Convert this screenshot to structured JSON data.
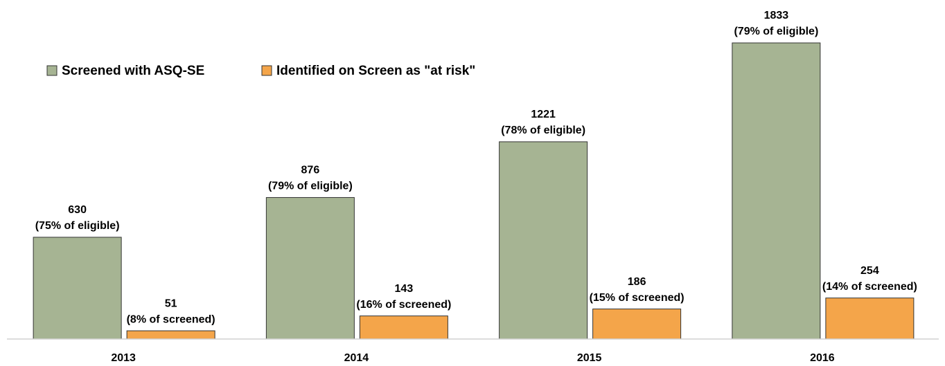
{
  "chart_data": {
    "type": "bar",
    "categories": [
      "2013",
      "2014",
      "2015",
      "2016"
    ],
    "series": [
      {
        "name": "Screened with ASQ-SE",
        "color": "#a6b493",
        "values": [
          630,
          876,
          1221,
          1833
        ],
        "sublabels": [
          "(75% of eligible)",
          "(79% of eligible)",
          "(78% of eligible)",
          "(79% of eligible)"
        ]
      },
      {
        "name": "Identified on Screen as \"at risk\"",
        "color": "#f4a54a",
        "values": [
          51,
          143,
          186,
          254
        ],
        "sublabels": [
          "(8% of screened)",
          "(16% of screened)",
          "(15% of screened)",
          "(14% of screened)"
        ]
      }
    ],
    "ylim": [
      0,
      2000
    ],
    "legend": "top-left"
  }
}
